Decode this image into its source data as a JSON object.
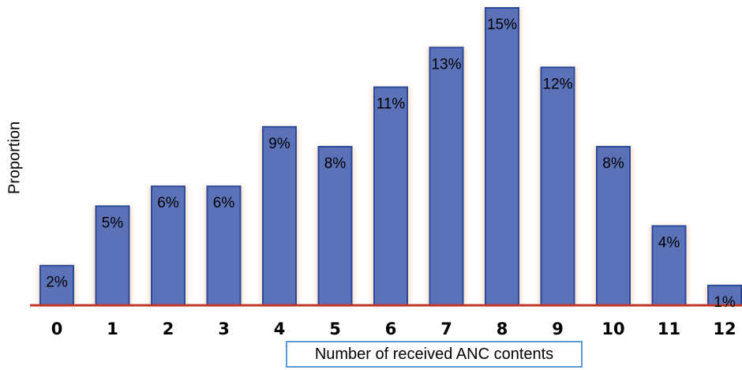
{
  "chart_data": {
    "type": "bar",
    "categories": [
      "0",
      "1",
      "2",
      "3",
      "4",
      "5",
      "6",
      "7",
      "8",
      "9",
      "10",
      "11",
      "12"
    ],
    "values": [
      2,
      5,
      6,
      6,
      9,
      8,
      11,
      13,
      15,
      12,
      8,
      4,
      1
    ],
    "value_labels": [
      "2%",
      "5%",
      "6%",
      "6%",
      "9%",
      "8%",
      "11%",
      "13%",
      "15%",
      "12%",
      "8%",
      "4%",
      "1%"
    ],
    "title": "",
    "xlabel": "Number of received ANC contents",
    "ylabel": "Proportion",
    "unit": "%",
    "ylim": [
      0,
      15
    ],
    "grid": false,
    "colors": {
      "bar_fill": "#5b72b8",
      "bar_stroke": "#2b4a9a",
      "baseline": "#c0392b",
      "xlabel_border": "#5b9bd5"
    }
  }
}
